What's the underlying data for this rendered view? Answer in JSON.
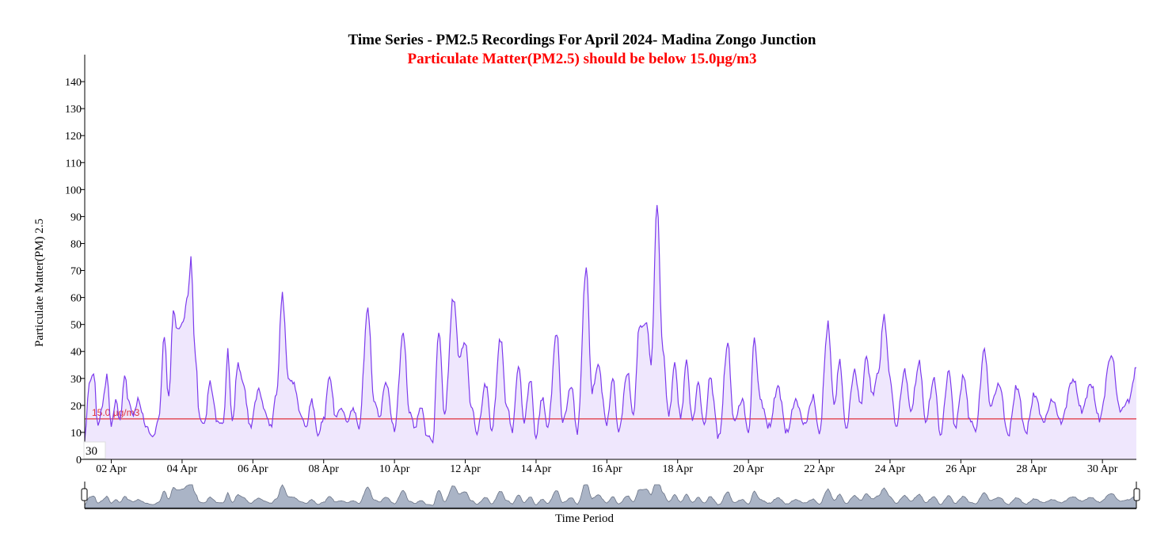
{
  "colors": {
    "line": "#7c3aed",
    "area": "#efe7fd",
    "threshold": "#e0313c",
    "subtitle": "#ff0000",
    "brush_fill": "#aab4c6",
    "brush_stroke": "#6b7487"
  },
  "chart_data": {
    "type": "area",
    "title": "Time Series - PM2.5 Recordings For April 2024- Madina Zongo Junction",
    "subtitle": "Particulate Matter(PM2.5) should be below 15.0µg/m3",
    "xlabel": "Time Period",
    "ylabel": "Particulate Matter(PM) 2.5",
    "ylim": [
      0,
      150
    ],
    "yticks": [
      0,
      10,
      20,
      30,
      40,
      50,
      60,
      70,
      80,
      90,
      100,
      110,
      120,
      130,
      140
    ],
    "xlim": [
      "2024-04-01T06:00",
      "2024-04-30T23:00"
    ],
    "xticks": [
      {
        "date": "2024-04-02",
        "label": "02 Apr"
      },
      {
        "date": "2024-04-04",
        "label": "04 Apr"
      },
      {
        "date": "2024-04-06",
        "label": "06 Apr"
      },
      {
        "date": "2024-04-08",
        "label": "08 Apr"
      },
      {
        "date": "2024-04-10",
        "label": "10 Apr"
      },
      {
        "date": "2024-04-12",
        "label": "12 Apr"
      },
      {
        "date": "2024-04-14",
        "label": "14 Apr"
      },
      {
        "date": "2024-04-16",
        "label": "16 Apr"
      },
      {
        "date": "2024-04-18",
        "label": "18 Apr"
      },
      {
        "date": "2024-04-20",
        "label": "20 Apr"
      },
      {
        "date": "2024-04-22",
        "label": "22 Apr"
      },
      {
        "date": "2024-04-24",
        "label": "24 Apr"
      },
      {
        "date": "2024-04-26",
        "label": "26 Apr"
      },
      {
        "date": "2024-04-28",
        "label": "28 Apr"
      },
      {
        "date": "2024-04-30",
        "label": "30 Apr"
      }
    ],
    "threshold": {
      "value": 15.0,
      "label": "15.0 µg/m3"
    },
    "hover_label": "30",
    "brush": true,
    "grid": false,
    "series": [
      {
        "points": [
          [
            "2024-04-01T06:00",
            7
          ],
          [
            "2024-04-01T09:00",
            28
          ],
          [
            "2024-04-01T12:00",
            32
          ],
          [
            "2024-04-01T15:00",
            12
          ],
          [
            "2024-04-01T18:00",
            20
          ],
          [
            "2024-04-01T21:00",
            31
          ],
          [
            "2024-04-02T00:00",
            12
          ],
          [
            "2024-04-02T03:00",
            22
          ],
          [
            "2024-04-02T06:00",
            14
          ],
          [
            "2024-04-02T09:00",
            31
          ],
          [
            "2024-04-02T12:00",
            21
          ],
          [
            "2024-04-02T15:00",
            16
          ],
          [
            "2024-04-02T18:00",
            22
          ],
          [
            "2024-04-03T00:00",
            12
          ],
          [
            "2024-04-03T04:00",
            8
          ],
          [
            "2024-04-03T08:00",
            14
          ],
          [
            "2024-04-03T12:00",
            45
          ],
          [
            "2024-04-03T15:00",
            22
          ],
          [
            "2024-04-03T18:00",
            55
          ],
          [
            "2024-04-03T21:00",
            48
          ],
          [
            "2024-04-04T00:00",
            50
          ],
          [
            "2024-04-04T04:00",
            60
          ],
          [
            "2024-04-04T06:00",
            74
          ],
          [
            "2024-04-04T09:00",
            38
          ],
          [
            "2024-04-04T12:00",
            15
          ],
          [
            "2024-04-04T15:00",
            13
          ],
          [
            "2024-04-04T19:00",
            28
          ],
          [
            "2024-04-05T00:00",
            14
          ],
          [
            "2024-04-05T04:00",
            13
          ],
          [
            "2024-04-05T07:00",
            40
          ],
          [
            "2024-04-05T10:00",
            14
          ],
          [
            "2024-04-05T14:00",
            35
          ],
          [
            "2024-04-05T18:00",
            27
          ],
          [
            "2024-04-05T22:00",
            12
          ],
          [
            "2024-04-06T04:00",
            26
          ],
          [
            "2024-04-06T08:00",
            18
          ],
          [
            "2024-04-06T12:00",
            12
          ],
          [
            "2024-04-06T16:00",
            24
          ],
          [
            "2024-04-06T20:00",
            61
          ],
          [
            "2024-04-07T00:00",
            30
          ],
          [
            "2024-04-07T04:00",
            28
          ],
          [
            "2024-04-07T08:00",
            17
          ],
          [
            "2024-04-07T12:00",
            12
          ],
          [
            "2024-04-07T16:00",
            22
          ],
          [
            "2024-04-07T20:00",
            9
          ],
          [
            "2024-04-08T00:00",
            15
          ],
          [
            "2024-04-08T04:00",
            31
          ],
          [
            "2024-04-08T08:00",
            16
          ],
          [
            "2024-04-08T12:00",
            19
          ],
          [
            "2024-04-08T16:00",
            14
          ],
          [
            "2024-04-08T20:00",
            19
          ],
          [
            "2024-04-09T00:00",
            12
          ],
          [
            "2024-04-09T06:00",
            56
          ],
          [
            "2024-04-09T10:00",
            22
          ],
          [
            "2024-04-09T14:00",
            16
          ],
          [
            "2024-04-09T18:00",
            29
          ],
          [
            "2024-04-10T00:00",
            11
          ],
          [
            "2024-04-10T06:00",
            47
          ],
          [
            "2024-04-10T10:00",
            18
          ],
          [
            "2024-04-10T14:00",
            12
          ],
          [
            "2024-04-10T18:00",
            20
          ],
          [
            "2024-04-10T22:00",
            9
          ],
          [
            "2024-04-11T02:00",
            7
          ],
          [
            "2024-04-11T06:00",
            48
          ],
          [
            "2024-04-11T10:00",
            17
          ],
          [
            "2024-04-11T16:00",
            60
          ],
          [
            "2024-04-11T20:00",
            38
          ],
          [
            "2024-04-12T00:00",
            44
          ],
          [
            "2024-04-12T04:00",
            20
          ],
          [
            "2024-04-12T08:00",
            10
          ],
          [
            "2024-04-12T14:00",
            28
          ],
          [
            "2024-04-12T18:00",
            11
          ],
          [
            "2024-04-13T00:00",
            45
          ],
          [
            "2024-04-13T04:00",
            20
          ],
          [
            "2024-04-13T08:00",
            11
          ],
          [
            "2024-04-13T12:00",
            35
          ],
          [
            "2024-04-13T16:00",
            14
          ],
          [
            "2024-04-13T20:00",
            30
          ],
          [
            "2024-04-14T00:00",
            8
          ],
          [
            "2024-04-14T04:00",
            23
          ],
          [
            "2024-04-14T08:00",
            12
          ],
          [
            "2024-04-14T14:00",
            47
          ],
          [
            "2024-04-14T18:00",
            14
          ],
          [
            "2024-04-15T00:00",
            27
          ],
          [
            "2024-04-15T04:00",
            10
          ],
          [
            "2024-04-15T10:00",
            71
          ],
          [
            "2024-04-15T14:00",
            25
          ],
          [
            "2024-04-15T18:00",
            35
          ],
          [
            "2024-04-16T00:00",
            13
          ],
          [
            "2024-04-16T04:00",
            30
          ],
          [
            "2024-04-16T08:00",
            10
          ],
          [
            "2024-04-16T14:00",
            32
          ],
          [
            "2024-04-16T18:00",
            16
          ],
          [
            "2024-04-16T22:00",
            49
          ],
          [
            "2024-04-17T03:00",
            50
          ],
          [
            "2024-04-17T06:00",
            35
          ],
          [
            "2024-04-17T10:00",
            94
          ],
          [
            "2024-04-17T14:00",
            40
          ],
          [
            "2024-04-17T18:00",
            16
          ],
          [
            "2024-04-17T22:00",
            35
          ],
          [
            "2024-04-18T02:00",
            15
          ],
          [
            "2024-04-18T06:00",
            36
          ],
          [
            "2024-04-18T10:00",
            14
          ],
          [
            "2024-04-18T14:00",
            28
          ],
          [
            "2024-04-18T18:00",
            12
          ],
          [
            "2024-04-18T22:00",
            30
          ],
          [
            "2024-04-19T04:00",
            8
          ],
          [
            "2024-04-19T10:00",
            43
          ],
          [
            "2024-04-19T14:00",
            14
          ],
          [
            "2024-04-19T20:00",
            22
          ],
          [
            "2024-04-20T00:00",
            9
          ],
          [
            "2024-04-20T04:00",
            44
          ],
          [
            "2024-04-20T08:00",
            22
          ],
          [
            "2024-04-20T14:00",
            12
          ],
          [
            "2024-04-20T20:00",
            27
          ],
          [
            "2024-04-21T02:00",
            10
          ],
          [
            "2024-04-21T08:00",
            22
          ],
          [
            "2024-04-21T14:00",
            13
          ],
          [
            "2024-04-21T20:00",
            23
          ],
          [
            "2024-04-22T00:00",
            9
          ],
          [
            "2024-04-22T06:00",
            50
          ],
          [
            "2024-04-22T10:00",
            20
          ],
          [
            "2024-04-22T14:00",
            36
          ],
          [
            "2024-04-22T18:00",
            11
          ],
          [
            "2024-04-23T00:00",
            33
          ],
          [
            "2024-04-23T04:00",
            20
          ],
          [
            "2024-04-23T08:00",
            38
          ],
          [
            "2024-04-23T12:00",
            24
          ],
          [
            "2024-04-23T16:00",
            32
          ],
          [
            "2024-04-23T20:00",
            53
          ],
          [
            "2024-04-24T00:00",
            30
          ],
          [
            "2024-04-24T04:00",
            12
          ],
          [
            "2024-04-24T10:00",
            33
          ],
          [
            "2024-04-24T14:00",
            18
          ],
          [
            "2024-04-24T20:00",
            36
          ],
          [
            "2024-04-25T00:00",
            14
          ],
          [
            "2024-04-25T06:00",
            30
          ],
          [
            "2024-04-25T10:00",
            9
          ],
          [
            "2024-04-25T16:00",
            33
          ],
          [
            "2024-04-25T20:00",
            12
          ],
          [
            "2024-04-26T02:00",
            31
          ],
          [
            "2024-04-26T06:00",
            15
          ],
          [
            "2024-04-26T10:00",
            11
          ],
          [
            "2024-04-26T16:00",
            41
          ],
          [
            "2024-04-26T20:00",
            20
          ],
          [
            "2024-04-27T02:00",
            28
          ],
          [
            "2024-04-27T08:00",
            9
          ],
          [
            "2024-04-27T14:00",
            27
          ],
          [
            "2024-04-27T20:00",
            10
          ],
          [
            "2024-04-28T02:00",
            24
          ],
          [
            "2024-04-28T08:00",
            14
          ],
          [
            "2024-04-28T14:00",
            22
          ],
          [
            "2024-04-28T20:00",
            14
          ],
          [
            "2024-04-29T04:00",
            30
          ],
          [
            "2024-04-29T10:00",
            18
          ],
          [
            "2024-04-29T16:00",
            28
          ],
          [
            "2024-04-29T22:00",
            15
          ],
          [
            "2024-04-30T06:00",
            39
          ],
          [
            "2024-04-30T12:00",
            18
          ],
          [
            "2024-04-30T18:00",
            22
          ],
          [
            "2024-04-30T23:00",
            34
          ]
        ]
      }
    ]
  }
}
